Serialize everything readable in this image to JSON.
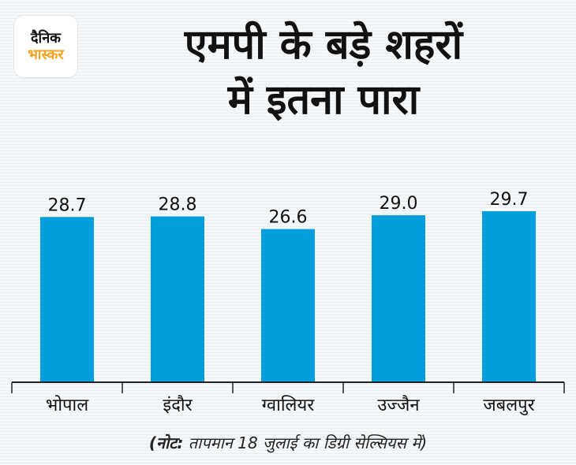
{
  "logo": {
    "line1": "दैनिक",
    "line2": "भास्कर"
  },
  "title_line1": "एमपी के बड़े शहरों",
  "title_line2": "में इतना पारा",
  "note": {
    "prefix": "(नोट:",
    "text": " तापमान 18 जुलाई का डिग्री सेल्सियस में)"
  },
  "colors": {
    "bar": "#009fdb",
    "axis": "#222222",
    "text": "#111111"
  },
  "chart_data": {
    "type": "bar",
    "title": "एमपी के बड़े शहरों में इतना पारा",
    "categories": [
      "भोपाल",
      "इंदौर",
      "ग्वालियर",
      "उज्जैन",
      "जबलपुर"
    ],
    "values": [
      28.7,
      28.8,
      26.6,
      29.0,
      29.7
    ],
    "labels": [
      "28.7",
      "28.8",
      "26.6",
      "29.0",
      "29.7"
    ],
    "ylim": [
      0,
      35
    ],
    "xlabel": "",
    "ylabel": "",
    "grid": false
  }
}
